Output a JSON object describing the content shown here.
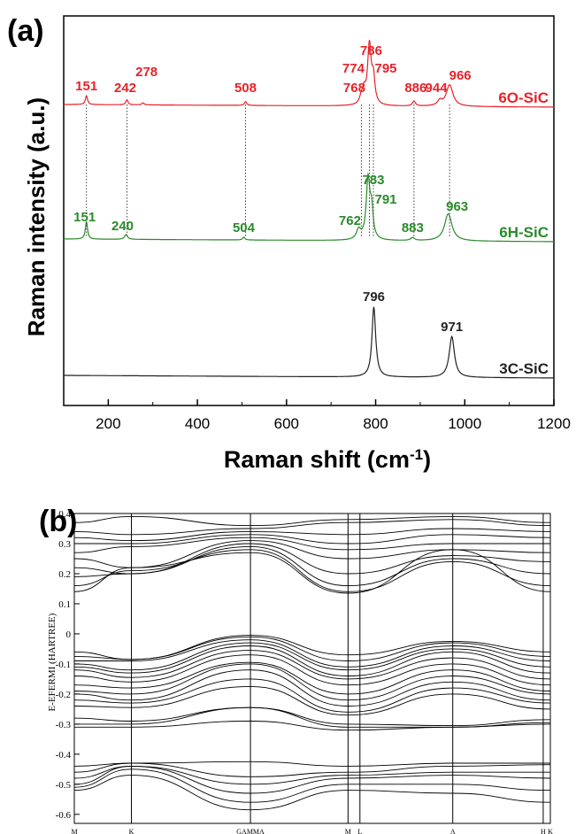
{
  "panels": {
    "a_label": "(a)",
    "b_label": "(b)"
  },
  "chart_data": [
    {
      "type": "line",
      "panel": "(a)",
      "xlabel_main": "Raman shift (cm",
      "xlabel_sup": "-1",
      "xlabel_end": ")",
      "ylabel": "Raman intensity (a.u.)",
      "xlim": [
        100,
        1200
      ],
      "xticks": [
        "200",
        "400",
        "600",
        "800",
        "1000",
        "1200"
      ],
      "yticks_shown": false,
      "colors": {
        "6O-SiC": "#e8222a",
        "6H-SiC": "#2a8a2a",
        "3C-SiC": "#222222"
      },
      "series": [
        {
          "name": "6O-SiC",
          "color": "#e8222a",
          "baseline": 1.0,
          "peaks": [
            {
              "x": 151,
              "h": 0.09,
              "w": 3
            },
            {
              "x": 242,
              "h": 0.05,
              "w": 3
            },
            {
              "x": 278,
              "h": 0.02,
              "w": 3
            },
            {
              "x": 508,
              "h": 0.04,
              "w": 3
            },
            {
              "x": 768,
              "h": 0.07,
              "w": 5
            },
            {
              "x": 774,
              "h": 0.12,
              "w": 4
            },
            {
              "x": 786,
              "h": 0.62,
              "w": 5
            },
            {
              "x": 795,
              "h": 0.25,
              "w": 4
            },
            {
              "x": 886,
              "h": 0.05,
              "w": 4
            },
            {
              "x": 944,
              "h": 0.05,
              "w": 6
            },
            {
              "x": 966,
              "h": 0.22,
              "w": 9
            }
          ],
          "labels": [
            {
              "x": 151,
              "text": "151"
            },
            {
              "x": 242,
              "text": "242"
            },
            {
              "x": 278,
              "text": "278"
            },
            {
              "x": 508,
              "text": "508"
            },
            {
              "x": 768,
              "text": "768"
            },
            {
              "x": 774,
              "text": "774"
            },
            {
              "x": 786,
              "text": "786"
            },
            {
              "x": 795,
              "text": "795"
            },
            {
              "x": 886,
              "text": "886"
            },
            {
              "x": 944,
              "text": "944"
            },
            {
              "x": 966,
              "text": "966"
            }
          ]
        },
        {
          "name": "6H-SiC",
          "color": "#2a8a2a",
          "baseline": 0.0,
          "peaks": [
            {
              "x": 151,
              "h": 0.18,
              "w": 3
            },
            {
              "x": 240,
              "h": 0.05,
              "w": 4
            },
            {
              "x": 504,
              "h": 0.03,
              "w": 3
            },
            {
              "x": 762,
              "h": 0.1,
              "w": 6
            },
            {
              "x": 783,
              "h": 0.62,
              "w": 5
            },
            {
              "x": 791,
              "h": 0.28,
              "w": 4
            },
            {
              "x": 883,
              "h": 0.03,
              "w": 5
            },
            {
              "x": 963,
              "h": 0.28,
              "w": 10
            }
          ],
          "labels": [
            {
              "x": 151,
              "text": "151"
            },
            {
              "x": 240,
              "text": "240"
            },
            {
              "x": 504,
              "text": "504"
            },
            {
              "x": 762,
              "text": "762"
            },
            {
              "x": 783,
              "text": "783"
            },
            {
              "x": 791,
              "text": "791"
            },
            {
              "x": 883,
              "text": "883"
            },
            {
              "x": 963,
              "text": "963"
            }
          ]
        },
        {
          "name": "3C-SiC",
          "color": "#222222",
          "baseline": -1.0,
          "peaks": [
            {
              "x": 796,
              "h": 0.72,
              "w": 5
            },
            {
              "x": 971,
              "h": 0.42,
              "w": 7
            }
          ],
          "labels": [
            {
              "x": 796,
              "text": "796"
            },
            {
              "x": 971,
              "text": "971"
            }
          ]
        }
      ],
      "dotted_guides": [
        151,
        242,
        508,
        768,
        786,
        795,
        886,
        966
      ]
    },
    {
      "type": "line",
      "panel": "(b)",
      "ylabel": "E-EFERMI (HARTREE)",
      "ylim": [
        -0.63,
        0.4
      ],
      "yticks": [
        "0.4",
        "0.3",
        "0.2",
        "0.1",
        "0",
        "-0.1",
        "-0.2",
        "-0.3",
        "-0.4",
        "-0.5",
        "-0.6"
      ],
      "k_path": [
        "M",
        "K",
        "GAMMA",
        "M",
        "L",
        "A",
        "H",
        "K"
      ],
      "k_positions": [
        0,
        0.12,
        0.37,
        0.575,
        0.6,
        0.795,
        0.985,
        1.0
      ],
      "bands_valence_top": [
        {
          "M": -0.06,
          "K": -0.085,
          "GAMMA": -0.005,
          "M2": -0.07,
          "A": -0.025,
          "K2": -0.06
        },
        {
          "M": -0.075,
          "K": -0.085,
          "GAMMA": -0.01,
          "M2": -0.09,
          "A": -0.03,
          "K2": -0.075
        },
        {
          "M": -0.09,
          "K": -0.09,
          "GAMMA": -0.02,
          "M2": -0.11,
          "A": -0.04,
          "K2": -0.09
        },
        {
          "M": -0.1,
          "K": -0.12,
          "GAMMA": -0.03,
          "M2": -0.12,
          "A": -0.05,
          "K2": -0.11
        },
        {
          "M": -0.11,
          "K": -0.13,
          "GAMMA": -0.04,
          "M2": -0.14,
          "A": -0.06,
          "K2": -0.13
        },
        {
          "M": -0.12,
          "K": -0.145,
          "GAMMA": -0.055,
          "M2": -0.15,
          "A": -0.08,
          "K2": -0.15
        },
        {
          "M": -0.14,
          "K": -0.16,
          "GAMMA": -0.07,
          "M2": -0.17,
          "A": -0.1,
          "K2": -0.17
        },
        {
          "M": -0.17,
          "K": -0.18,
          "GAMMA": -0.095,
          "M2": -0.2,
          "A": -0.12,
          "K2": -0.19
        },
        {
          "M": -0.19,
          "K": -0.2,
          "GAMMA": -0.1,
          "M2": -0.22,
          "A": -0.14,
          "K2": -0.2
        },
        {
          "M": -0.2,
          "K": -0.22,
          "GAMMA": -0.12,
          "M2": -0.24,
          "A": -0.16,
          "K2": -0.22
        },
        {
          "M": -0.22,
          "K": -0.23,
          "GAMMA": -0.15,
          "M2": -0.26,
          "A": -0.18,
          "K2": -0.23
        },
        {
          "M": -0.24,
          "K": -0.245,
          "GAMMA": -0.175,
          "M2": -0.27,
          "A": -0.2,
          "K2": -0.25
        },
        {
          "M": -0.28,
          "K": -0.29,
          "GAMMA": -0.245,
          "M2": -0.3,
          "A": -0.305,
          "K2": -0.285
        },
        {
          "M": -0.3,
          "K": -0.3,
          "GAMMA": -0.245,
          "M2": -0.31,
          "A": -0.31,
          "K2": -0.295
        },
        {
          "M": -0.31,
          "K": -0.31,
          "GAMMA": -0.29,
          "M2": -0.32,
          "A": -0.31,
          "K2": -0.3
        }
      ],
      "bands_valence_low": [
        {
          "M": -0.44,
          "K": -0.43,
          "GAMMA": -0.425,
          "M2": -0.44,
          "A": -0.43,
          "K2": -0.43
        },
        {
          "M": -0.46,
          "K": -0.43,
          "GAMMA": -0.475,
          "M2": -0.46,
          "A": -0.44,
          "K2": -0.435
        },
        {
          "M": -0.48,
          "K": -0.44,
          "GAMMA": -0.5,
          "M2": -0.47,
          "A": -0.46,
          "K2": -0.46
        },
        {
          "M": -0.5,
          "K": -0.44,
          "GAMMA": -0.53,
          "M2": -0.48,
          "A": -0.47,
          "K2": -0.48
        },
        {
          "M": -0.51,
          "K": -0.45,
          "GAMMA": -0.56,
          "M2": -0.5,
          "A": -0.5,
          "K2": -0.52
        },
        {
          "M": -0.52,
          "K": -0.47,
          "GAMMA": -0.585,
          "M2": -0.52,
          "A": -0.53,
          "K2": -0.56
        }
      ],
      "bands_conduction": [
        {
          "M": 0.37,
          "K": 0.39,
          "GAMMA": 0.36,
          "M2": 0.38,
          "A": 0.39,
          "K2": 0.37
        },
        {
          "M": 0.34,
          "K": 0.33,
          "GAMMA": 0.35,
          "M2": 0.37,
          "A": 0.38,
          "K2": 0.36
        },
        {
          "M": 0.32,
          "K": 0.31,
          "GAMMA": 0.34,
          "M2": 0.33,
          "A": 0.35,
          "K2": 0.34
        },
        {
          "M": 0.3,
          "K": 0.3,
          "GAMMA": 0.33,
          "M2": 0.3,
          "A": 0.33,
          "K2": 0.32
        },
        {
          "M": 0.27,
          "K": 0.29,
          "GAMMA": 0.32,
          "M2": 0.28,
          "A": 0.3,
          "K2": 0.3
        },
        {
          "M": 0.25,
          "K": 0.22,
          "GAMMA": 0.31,
          "M2": 0.25,
          "A": 0.28,
          "K2": 0.27
        },
        {
          "M": 0.22,
          "K": 0.2,
          "GAMMA": 0.3,
          "M2": 0.2,
          "A": 0.26,
          "K2": 0.24
        },
        {
          "M": 0.19,
          "K": 0.2,
          "GAMMA": 0.29,
          "M2": 0.16,
          "A": 0.25,
          "K2": 0.2
        },
        {
          "M": 0.16,
          "K": 0.21,
          "GAMMA": 0.28,
          "M2": 0.14,
          "A": 0.24,
          "K2": 0.16
        },
        {
          "M": 0.14,
          "K": 0.22,
          "GAMMA": 0.27,
          "M2": 0.135,
          "A": 0.28,
          "K2": 0.14
        }
      ]
    }
  ]
}
